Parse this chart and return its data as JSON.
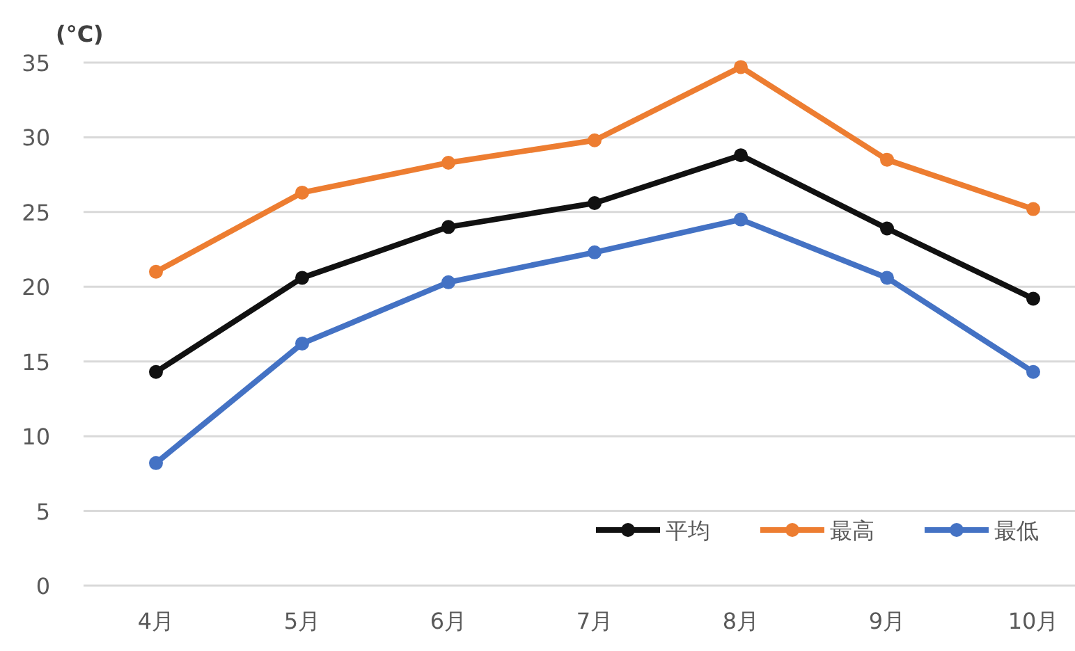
{
  "chart_data": {
    "type": "line",
    "ylabel": "(°C)",
    "categories": [
      "4月",
      "5月",
      "6月",
      "7月",
      "8月",
      "9月",
      "10月"
    ],
    "series": [
      {
        "name": "平均",
        "color": "#111111",
        "values": [
          14.3,
          20.6,
          24.0,
          25.6,
          28.8,
          23.9,
          19.2
        ]
      },
      {
        "name": "最高",
        "color": "#ed7d31",
        "values": [
          21.0,
          26.3,
          28.3,
          29.8,
          34.7,
          28.5,
          25.2
        ]
      },
      {
        "name": "最低",
        "color": "#4472c4",
        "values": [
          8.2,
          16.2,
          20.3,
          22.3,
          24.5,
          20.6,
          14.3
        ]
      }
    ],
    "ylim": [
      0,
      35
    ],
    "yticks": [
      0,
      5,
      10,
      15,
      20,
      25,
      30,
      35
    ],
    "grid": "y",
    "legend": "bottom right",
    "marker": "circle",
    "line_style": "solid"
  }
}
